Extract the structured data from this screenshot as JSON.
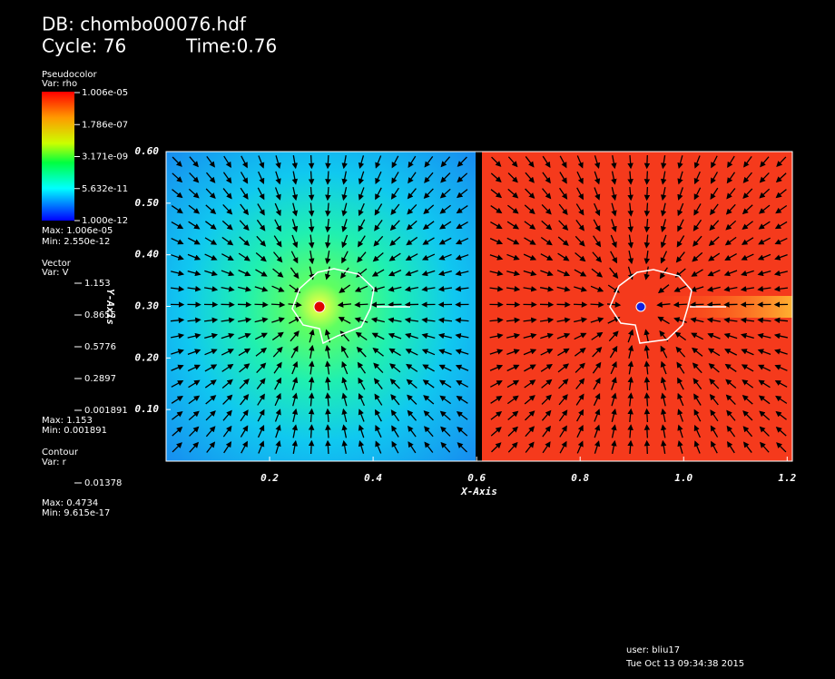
{
  "header": {
    "db": "DB: chombo00076.hdf",
    "cycle": "Cycle: 76",
    "time": "Time:0.76"
  },
  "legend": {
    "pseudocolor": {
      "title": "Pseudocolor",
      "var": "Var: rho",
      "labels": [
        "1.006e-05",
        "1.786e-07",
        "3.171e-09",
        "5.632e-11",
        "1.000e-12"
      ],
      "max": "Max: 1.006e-05",
      "min": "Min: 2.550e-12"
    },
    "vector": {
      "title": "Vector",
      "var": "Var: V",
      "labels": [
        "1.153",
        "0.8655",
        "0.5776",
        "0.2897",
        "0.001891"
      ],
      "max": "Max: 1.153",
      "min": "Min: 0.001891"
    },
    "contour": {
      "title": "Contour",
      "var": "Var: r",
      "labels": [
        "0.01378"
      ],
      "max": "Max: 0.4734",
      "min": "Min: 9.615e-17"
    }
  },
  "axes": {
    "x_title": "X-Axis",
    "y_title": "Y-Axis",
    "xlim": [
      0,
      1.21
    ],
    "ylim": [
      0,
      0.6
    ],
    "xticks": [
      0.2,
      0.4,
      0.6,
      0.8,
      {
        "value": 1.0,
        "label": "1.0"
      },
      1.2
    ],
    "yticks": [
      {
        "value": 0.1,
        "label": "0.10"
      },
      {
        "value": 0.2,
        "label": "0.20"
      },
      {
        "value": 0.3,
        "label": "0.30"
      },
      {
        "value": 0.4,
        "label": "0.40"
      },
      {
        "value": 0.5,
        "label": "0.50"
      },
      {
        "value": 0.6,
        "label": "0.60"
      }
    ]
  },
  "footer": {
    "user": "user: bliu17",
    "date": "Tue Oct 13 09:34:38 2015"
  }
}
